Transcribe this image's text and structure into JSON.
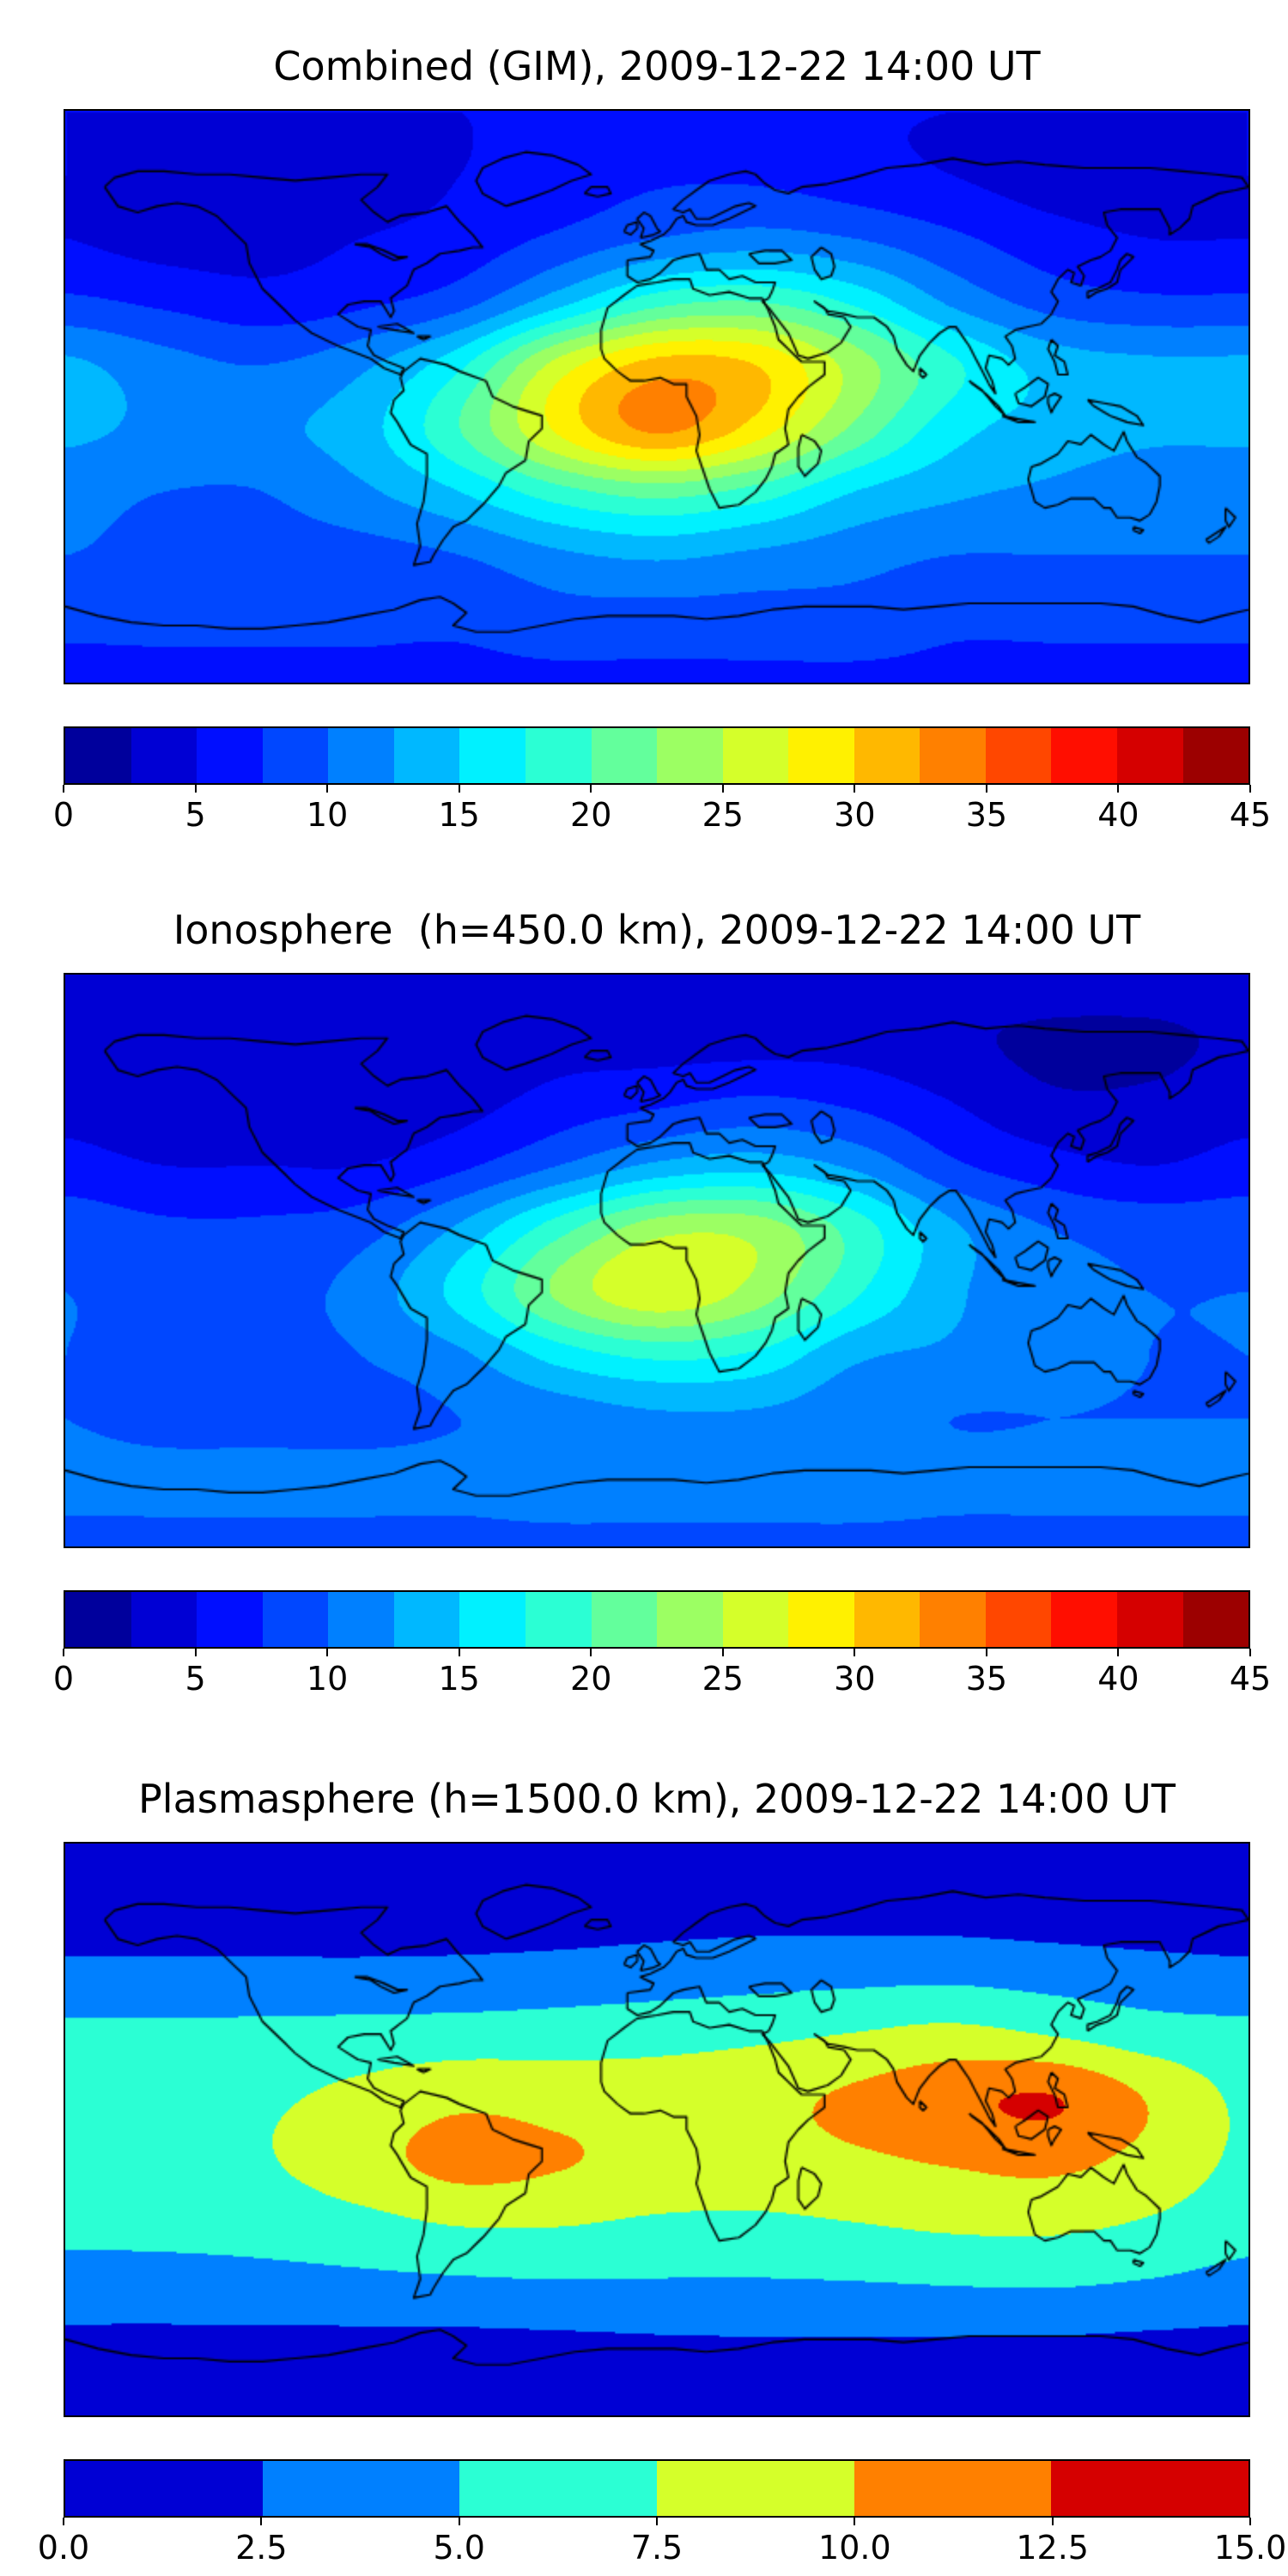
{
  "figure": {
    "background": "#ffffff",
    "colormap": "jet"
  },
  "panels": [
    {
      "title": "Combined (GIM), 2009-12-22 14:00 UT",
      "colorbar": {
        "tick_labels": [
          "0",
          "5",
          "10",
          "15",
          "20",
          "25",
          "30",
          "35",
          "40",
          "45"
        ]
      }
    },
    {
      "title": "Ionosphere  (h=450.0 km), 2009-12-22 14:00 UT",
      "colorbar": {
        "tick_labels": [
          "0",
          "5",
          "10",
          "15",
          "20",
          "25",
          "30",
          "35",
          "40",
          "45"
        ]
      }
    },
    {
      "title": "Plasmasphere (h=1500.0 km), 2009-12-22 14:00 UT",
      "colorbar": {
        "tick_labels": [
          "0.0",
          "2.5",
          "5.0",
          "7.5",
          "10.0",
          "12.5",
          "15.0"
        ]
      }
    }
  ],
  "chart_data": [
    {
      "type": "heatmap",
      "title": "Combined (GIM), 2009-12-22 14:00 UT",
      "projection": "equirectangular world map with coastlines",
      "colormap": "jet",
      "levels": {
        "min": 0,
        "max": 45,
        "step": 2.5
      },
      "colorbar_ticks": [
        0,
        5,
        10,
        15,
        20,
        25,
        30,
        35,
        40,
        45
      ],
      "lon": [
        -180,
        -150,
        -120,
        -90,
        -60,
        -30,
        0,
        30,
        60,
        90,
        120,
        150,
        180
      ],
      "lat": [
        90,
        70,
        50,
        30,
        10,
        -10,
        -30,
        -50,
        -70,
        -90
      ],
      "values": [
        [
          5,
          5,
          5,
          5,
          5,
          5,
          5,
          5,
          5,
          5,
          5,
          5,
          5
        ],
        [
          5,
          4,
          4,
          4,
          5,
          6,
          7,
          7,
          6,
          5,
          4,
          4,
          5
        ],
        [
          5,
          4,
          4,
          5,
          6,
          8,
          10,
          11,
          10,
          8,
          6,
          5,
          5
        ],
        [
          8,
          7,
          6,
          7,
          9,
          14,
          19,
          20,
          17,
          12,
          9,
          8,
          8
        ],
        [
          13,
          11,
          10,
          12,
          17,
          26,
          31,
          30,
          24,
          18,
          14,
          13,
          13
        ],
        [
          13,
          12,
          12,
          14,
          20,
          28,
          33,
          29,
          22,
          16,
          14,
          13,
          13
        ],
        [
          11,
          10,
          10,
          12,
          15,
          19,
          21,
          19,
          15,
          13,
          12,
          11,
          11
        ],
        [
          10,
          9,
          9,
          9,
          10,
          12,
          13,
          12,
          11,
          10,
          10,
          10,
          10
        ],
        [
          8,
          8,
          8,
          8,
          8,
          9,
          9,
          9,
          9,
          8,
          8,
          8,
          8
        ],
        [
          7,
          7,
          7,
          7,
          7,
          7,
          7,
          7,
          7,
          7,
          7,
          7,
          7
        ]
      ]
    },
    {
      "type": "heatmap",
      "title": "Ionosphere  (h=450.0 km), 2009-12-22 14:00 UT",
      "projection": "equirectangular world map with coastlines",
      "colormap": "jet",
      "levels": {
        "min": 0,
        "max": 45,
        "step": 2.5
      },
      "colorbar_ticks": [
        0,
        5,
        10,
        15,
        20,
        25,
        30,
        35,
        40,
        45
      ],
      "lon": [
        -180,
        -150,
        -120,
        -90,
        -60,
        -30,
        0,
        30,
        60,
        90,
        120,
        150,
        180
      ],
      "lat": [
        90,
        70,
        50,
        30,
        10,
        -10,
        -30,
        -50,
        -70,
        -90
      ],
      "values": [
        [
          4,
          4,
          4,
          4,
          4,
          4,
          4,
          4,
          4,
          4,
          4,
          4,
          4
        ],
        [
          3,
          3,
          3,
          3,
          3,
          4,
          4,
          4,
          4,
          3,
          2,
          2,
          3
        ],
        [
          4,
          3,
          3,
          3,
          4,
          6,
          7,
          8,
          7,
          5,
          3,
          3,
          4
        ],
        [
          6,
          5,
          5,
          5,
          7,
          10,
          13,
          14,
          12,
          8,
          6,
          5,
          6
        ],
        [
          9,
          8,
          8,
          9,
          13,
          19,
          24,
          24,
          19,
          13,
          10,
          9,
          9
        ],
        [
          10,
          9,
          9,
          11,
          16,
          23,
          27,
          24,
          18,
          13,
          11,
          10,
          10
        ],
        [
          10,
          9,
          9,
          10,
          12,
          16,
          18,
          17,
          13,
          12,
          11,
          10,
          10
        ],
        [
          10,
          9,
          9,
          9,
          10,
          11,
          12,
          12,
          11,
          10,
          10,
          10,
          10
        ],
        [
          11,
          11,
          11,
          11,
          11,
          12,
          12,
          12,
          12,
          11,
          11,
          11,
          11
        ],
        [
          9,
          9,
          9,
          9,
          9,
          9,
          9,
          9,
          9,
          9,
          9,
          9,
          9
        ]
      ]
    },
    {
      "type": "heatmap",
      "title": "Plasmasphere (h=1500.0 km), 2009-12-22 14:00 UT",
      "projection": "equirectangular world map with coastlines",
      "colormap": "jet",
      "levels": {
        "min": 0,
        "max": 15,
        "step": 2.5
      },
      "colorbar_ticks": [
        0,
        2.5,
        5,
        7.5,
        10,
        12.5,
        15
      ],
      "lon": [
        -180,
        -150,
        -120,
        -90,
        -60,
        -30,
        0,
        30,
        60,
        90,
        120,
        150,
        180
      ],
      "lat": [
        90,
        70,
        50,
        30,
        10,
        -10,
        -30,
        -50,
        -70,
        -90
      ],
      "values": [
        [
          0.8,
          0.8,
          0.8,
          0.8,
          0.8,
          0.8,
          0.8,
          0.8,
          0.8,
          0.8,
          0.8,
          0.8,
          0.8
        ],
        [
          1.2,
          1.2,
          1.2,
          1.2,
          1.2,
          1.3,
          1.5,
          1.6,
          1.6,
          1.5,
          1.3,
          1.2,
          1.2
        ],
        [
          3.0,
          3.0,
          3.0,
          3.0,
          3.1,
          3.3,
          3.6,
          3.9,
          4.1,
          4.2,
          3.8,
          3.3,
          3.0
        ],
        [
          5.6,
          5.6,
          5.7,
          5.9,
          6.1,
          6.3,
          6.6,
          7.0,
          7.6,
          8.2,
          7.4,
          6.2,
          5.7
        ],
        [
          6.6,
          6.7,
          7.1,
          8.2,
          9.4,
          9.0,
          8.8,
          9.3,
          10.4,
          11.8,
          12.6,
          9.8,
          7.0
        ],
        [
          6.6,
          6.8,
          7.3,
          9.0,
          10.8,
          10.2,
          9.2,
          9.0,
          9.6,
          10.2,
          10.6,
          9.2,
          7.0
        ],
        [
          5.6,
          5.7,
          6.0,
          6.7,
          7.6,
          7.6,
          7.1,
          7.0,
          7.4,
          7.9,
          8.0,
          7.2,
          5.9
        ],
        [
          3.9,
          3.9,
          4.0,
          4.2,
          4.4,
          4.6,
          4.6,
          4.6,
          4.7,
          4.9,
          5.0,
          4.6,
          4.0
        ],
        [
          1.6,
          1.6,
          1.6,
          1.6,
          1.6,
          1.7,
          1.9,
          2.0,
          2.0,
          2.0,
          1.9,
          1.7,
          1.6
        ],
        [
          0.9,
          0.9,
          0.9,
          0.9,
          0.9,
          0.9,
          0.9,
          0.9,
          0.9,
          0.9,
          0.9,
          0.9,
          0.9
        ]
      ]
    }
  ]
}
